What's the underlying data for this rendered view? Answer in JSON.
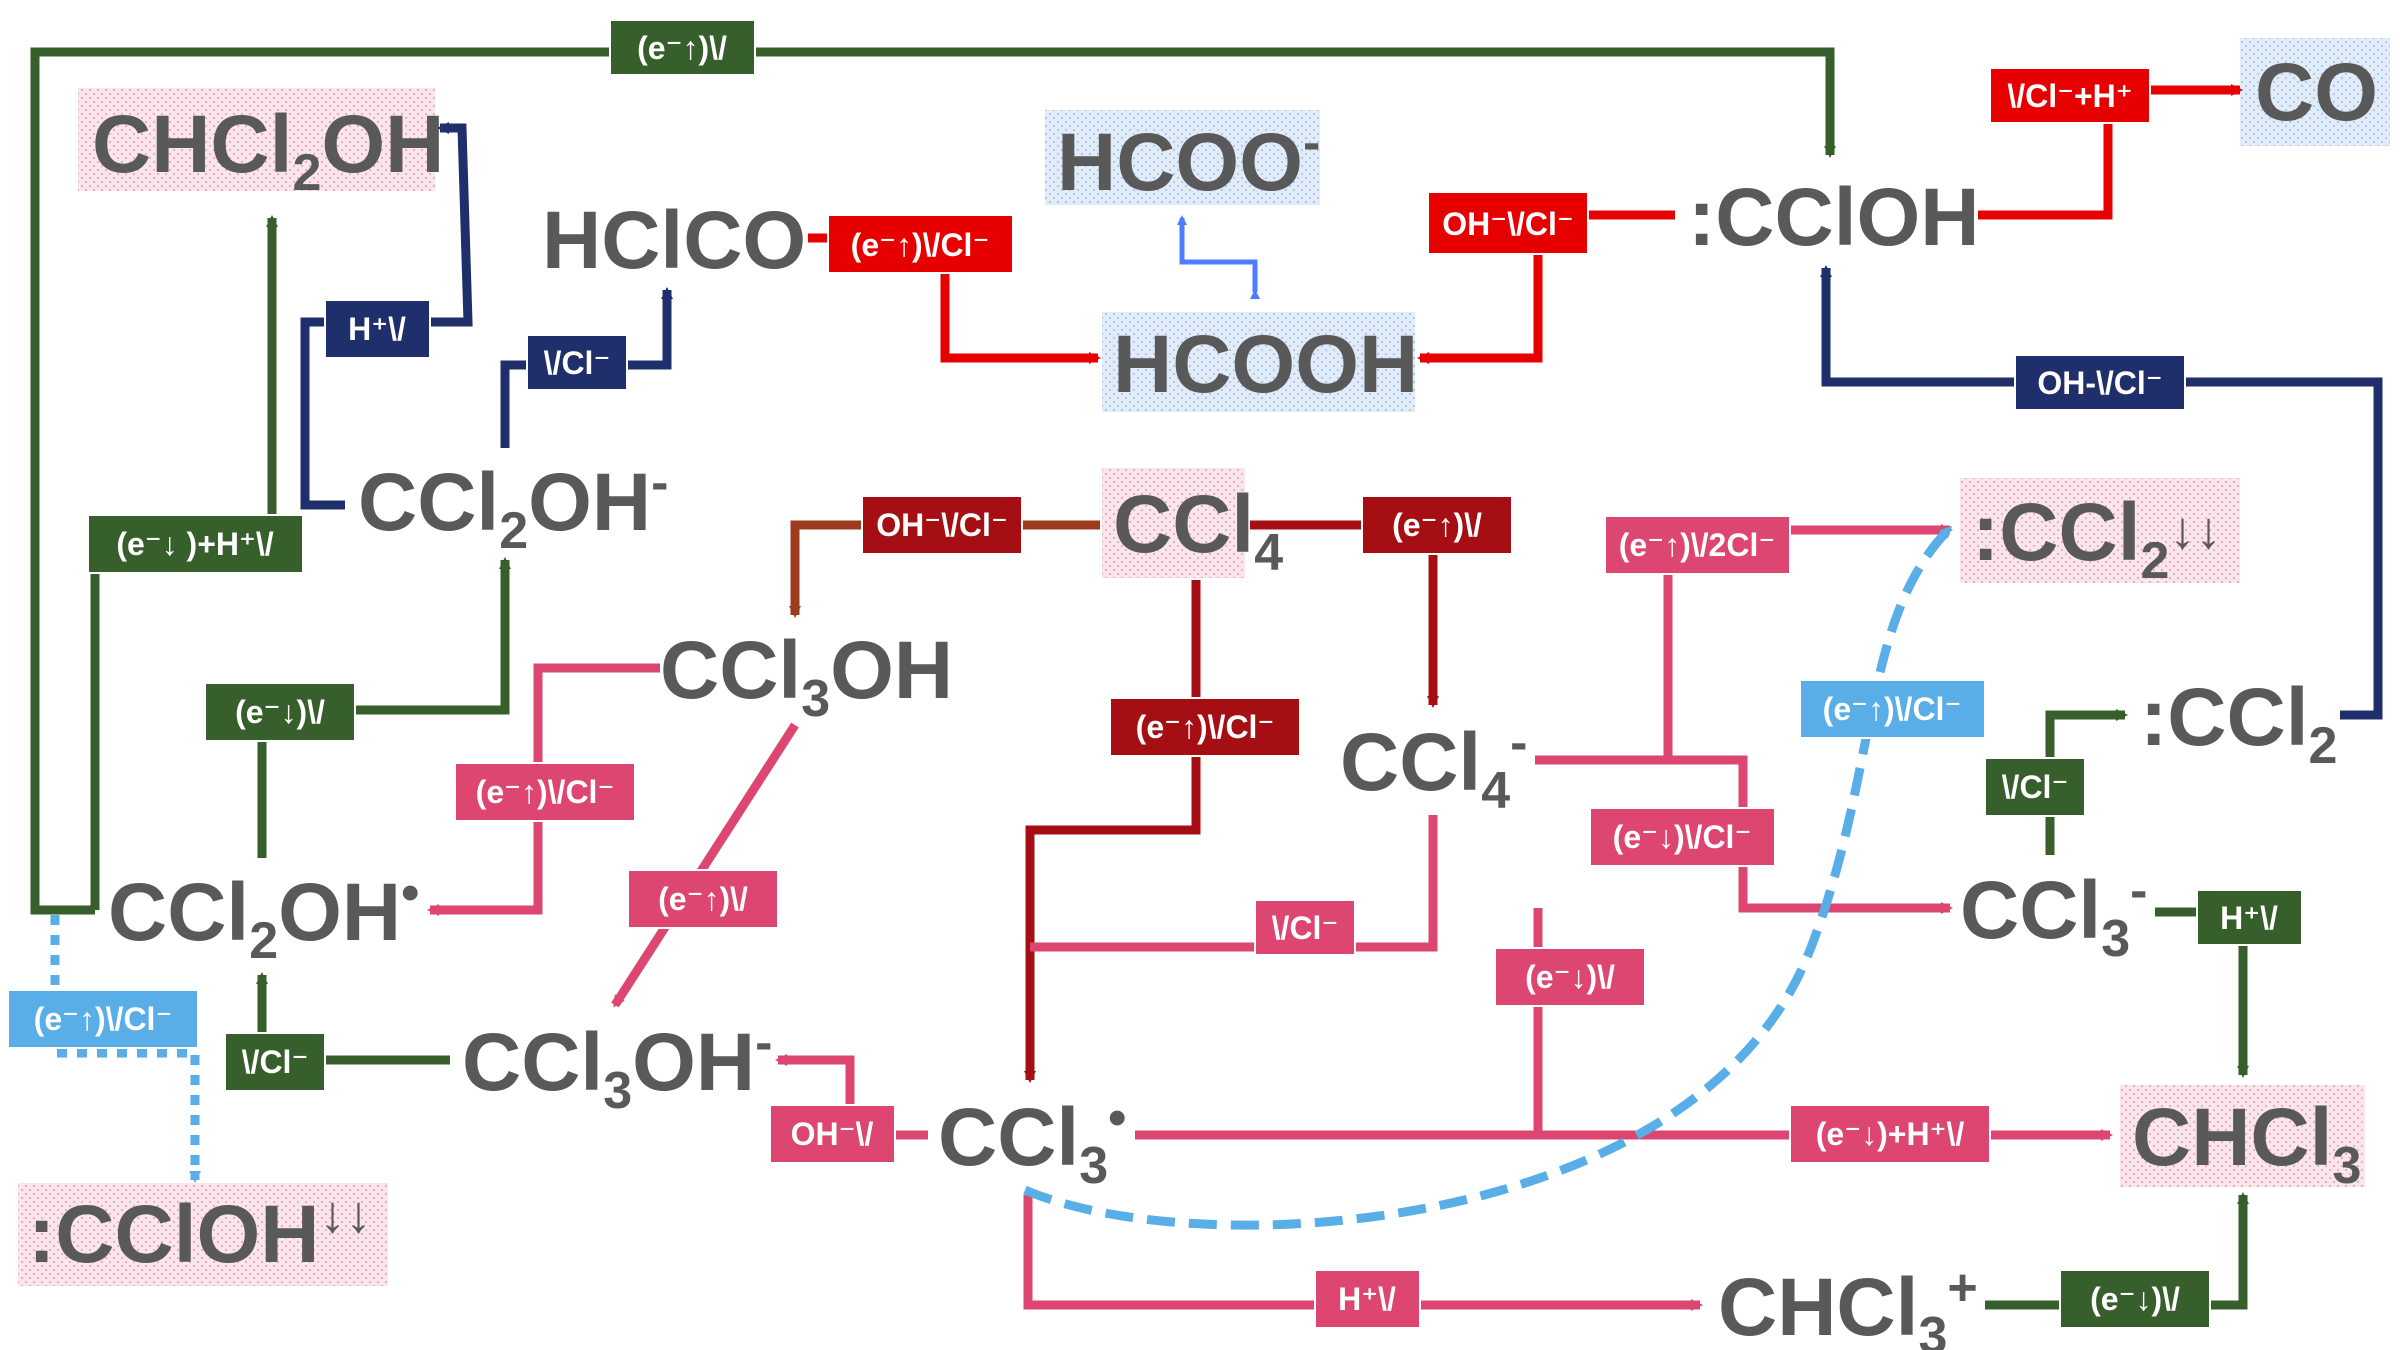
{
  "colors": {
    "green": "#375f2c",
    "red": "#e60000",
    "darkred": "#a50f14",
    "brown": "#9c3b1e",
    "pink": "#dc4670",
    "navy": "#1f2f6b",
    "lightblue": "#5aaee8",
    "blue": "#4d7cff",
    "species": "#595959",
    "pink_bg": "#fbe3ea",
    "blue_bg": "#dde9f8"
  },
  "species": {
    "chcl2oh": {
      "main": "CHCl",
      "sub": "2",
      "tail": "OH"
    },
    "hclco": {
      "main": "HClCO"
    },
    "hcoo": {
      "main": "HCOO",
      "sup": "-"
    },
    "hcooh": {
      "main": "HCOOH"
    },
    "ccloh": {
      "main": ":CClOH"
    },
    "co": {
      "main": "CO"
    },
    "ccl2oh_anion": {
      "main": "CCl",
      "sub": "2",
      "tail": "OH",
      "sup": "-"
    },
    "ccl4": {
      "main": "CCl",
      "sub": "4"
    },
    "ccl2_triplet": {
      "main": ":CCl",
      "sub": "2",
      "tail": "↓↓"
    },
    "ccl3oh": {
      "main": "CCl",
      "sub": "3",
      "tail": "OH"
    },
    "ccl4_anion": {
      "main": "CCl",
      "sub": "4",
      "sup": "-"
    },
    "ccl2": {
      "main": ":CCl",
      "sub": "2"
    },
    "ccl2oh_radical": {
      "main": "CCl",
      "sub": "2",
      "tail": "OH",
      "sup": "•"
    },
    "ccl3_anion": {
      "main": "CCl",
      "sub": "3",
      "sup": "-"
    },
    "ccl3oh_anion": {
      "main": "CCl",
      "sub": "3",
      "tail": "OH",
      "sup": "-"
    },
    "ccl3_radical": {
      "main": "CCl",
      "sub": "3",
      "sup": "•"
    },
    "chcl3": {
      "main": "CHCl",
      "sub": "3"
    },
    "ccloh_triplet": {
      "main": ":CClOH",
      "tail": "↓↓"
    },
    "chcl3_cation": {
      "main": "CHCl",
      "sub": "3",
      "sup": "+"
    }
  },
  "labels": {
    "top_green": "(e⁻↑)\\/",
    "cl_h_to_co": "\\/Cl⁻+H⁺",
    "hclco_to_hcooh": "(e⁻↑)\\/Cl⁻",
    "ccloh_to_hcooh": "OH⁻\\/Cl⁻",
    "h_navy": "H⁺\\/",
    "cl_navy": "\\/Cl⁻",
    "ccl2_to_ccloh": "OH-\\/Cl⁻",
    "green_h_left": "(e⁻↓ )+H⁺\\/",
    "ccl4_to_ccl3oh": "OH⁻\\/Cl⁻",
    "ccl4_to_anion": "(e⁻↑)\\/",
    "ccl4_to_radical": "(e⁻↑)\\/Cl⁻",
    "ccl4_anion_to_ccl2": "(e⁻↑)\\/2Cl⁻",
    "dashed_to_ccl2": "(e⁻↑)\\/Cl⁻",
    "green_e_down": "(e⁻↓)\\/",
    "pink_ccl3oh_to_rad": "(e⁻↑)\\/Cl⁻",
    "pink_ccl3oh_to_anion": "(e⁻↑)\\/",
    "ccl4_anion_to_ccl3_anion": "(e⁻↓)\\/Cl⁻",
    "green_cl_to_ccl2": "\\/Cl⁻",
    "ccl4_anion_to_rad": "\\/Cl⁻",
    "ccl3_rad_to_anion": "(e⁻↓)\\/",
    "h_to_chcl3": "H⁺\\/",
    "dotted_to_ccloh": "(e⁻↑)\\/Cl⁻",
    "green_cl_up": "\\/Cl⁻",
    "oh_rad": "OH⁻\\/",
    "rad_to_chcl3": "(e⁻↓)+H⁺\\/",
    "h_to_cation": "H⁺\\/",
    "cation_to_chcl3": "(e⁻↓)\\/"
  }
}
